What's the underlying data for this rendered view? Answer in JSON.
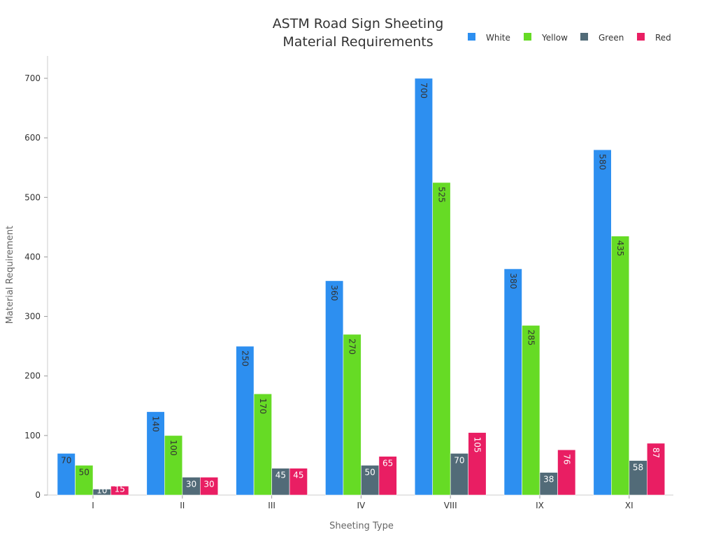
{
  "chart_data": {
    "type": "bar",
    "title": [
      "ASTM Road Sign Sheeting",
      "Material Requirements"
    ],
    "xlabel": "Sheeting Type",
    "ylabel": "Material Requirement",
    "categories": [
      "I",
      "II",
      "III",
      "IV",
      "VIII",
      "IX",
      "XI"
    ],
    "ylim": [
      0,
      735
    ],
    "yticks": [
      0,
      100,
      200,
      300,
      400,
      500,
      600,
      700
    ],
    "grid": false,
    "legend": "top-right",
    "series": [
      {
        "name": "White",
        "color": "#2d8ff0",
        "values": [
          70,
          140,
          250,
          360,
          700,
          380,
          580
        ]
      },
      {
        "name": "Yellow",
        "color": "#66db25",
        "values": [
          50,
          100,
          170,
          270,
          525,
          285,
          435
        ]
      },
      {
        "name": "Green",
        "color": "#526b78",
        "values": [
          10,
          30,
          45,
          50,
          70,
          38,
          58
        ]
      },
      {
        "name": "Red",
        "color": "#e91e63",
        "values": [
          15,
          30,
          45,
          65,
          105,
          76,
          87
        ]
      }
    ]
  }
}
